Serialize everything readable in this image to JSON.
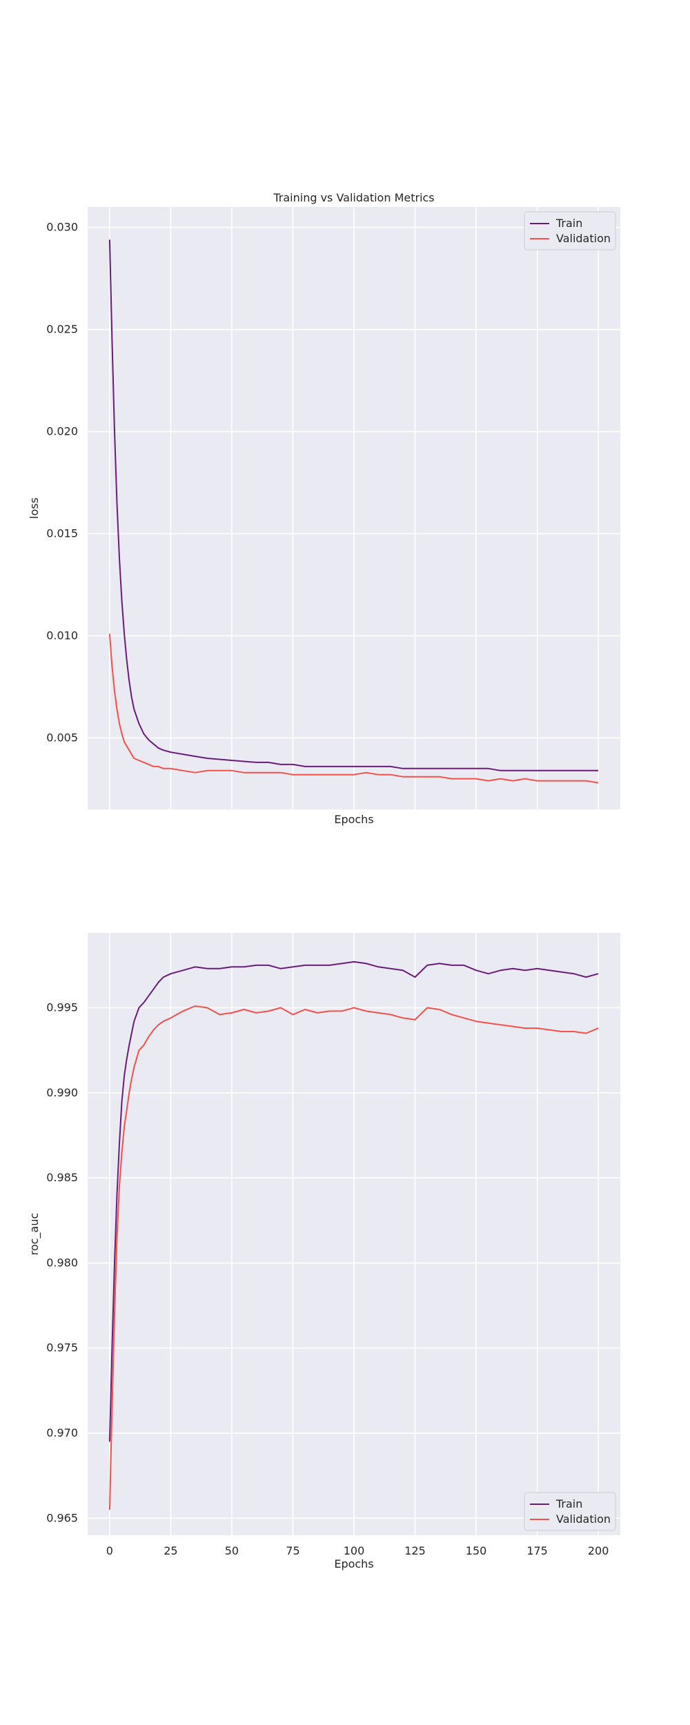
{
  "figure": {
    "title": "Training vs Validation Metrics",
    "background": "#ffffff",
    "axes_background": "#eaeaf2",
    "grid_color": "#ffffff"
  },
  "series_colors": {
    "Train": "#6a1b7a",
    "Validation": "#f4504a"
  },
  "chart_data": [
    {
      "type": "line",
      "title": "Training vs Validation Metrics",
      "xlabel": "Epochs",
      "ylabel": "loss",
      "xlim": [
        -9,
        209
      ],
      "ylim": [
        0.0015,
        0.031
      ],
      "xticks": [
        0,
        25,
        50,
        75,
        100,
        125,
        150,
        175,
        200
      ],
      "xtick_labels_visible": false,
      "yticks": [
        0.005,
        0.01,
        0.015,
        0.02,
        0.025,
        0.03
      ],
      "ytick_labels": [
        "0.005",
        "0.010",
        "0.015",
        "0.020",
        "0.025",
        "0.030"
      ],
      "grid": true,
      "legend": "upper right",
      "x": [
        0,
        1,
        2,
        3,
        4,
        5,
        6,
        7,
        8,
        9,
        10,
        12,
        14,
        16,
        18,
        20,
        22,
        25,
        30,
        35,
        40,
        45,
        50,
        55,
        60,
        65,
        70,
        75,
        80,
        85,
        90,
        95,
        100,
        105,
        110,
        115,
        120,
        125,
        130,
        135,
        140,
        145,
        150,
        155,
        160,
        165,
        170,
        175,
        180,
        185,
        190,
        195,
        200
      ],
      "series": [
        {
          "name": "Train",
          "values": [
            0.0294,
            0.0245,
            0.02,
            0.0165,
            0.0138,
            0.0117,
            0.0101,
            0.0088,
            0.0078,
            0.007,
            0.0064,
            0.0057,
            0.0052,
            0.0049,
            0.0047,
            0.0045,
            0.0044,
            0.0043,
            0.0042,
            0.0041,
            0.004,
            0.00395,
            0.0039,
            0.00385,
            0.0038,
            0.0038,
            0.0037,
            0.0037,
            0.0036,
            0.0036,
            0.0036,
            0.0036,
            0.0036,
            0.0036,
            0.0036,
            0.0036,
            0.0035,
            0.0035,
            0.0035,
            0.0035,
            0.0035,
            0.0035,
            0.0035,
            0.0035,
            0.0034,
            0.0034,
            0.0034,
            0.0034,
            0.0034,
            0.0034,
            0.0034,
            0.0034,
            0.0034
          ]
        },
        {
          "name": "Validation",
          "values": [
            0.0101,
            0.0085,
            0.0073,
            0.0064,
            0.0057,
            0.0052,
            0.0048,
            0.0046,
            0.0044,
            0.0042,
            0.004,
            0.0039,
            0.0038,
            0.0037,
            0.0036,
            0.0036,
            0.0035,
            0.0035,
            0.0034,
            0.0033,
            0.0034,
            0.0034,
            0.0034,
            0.0033,
            0.0033,
            0.0033,
            0.0033,
            0.0032,
            0.0032,
            0.0032,
            0.0032,
            0.0032,
            0.0032,
            0.0033,
            0.0032,
            0.0032,
            0.0031,
            0.0031,
            0.0031,
            0.0031,
            0.003,
            0.003,
            0.003,
            0.0029,
            0.003,
            0.0029,
            0.003,
            0.0029,
            0.0029,
            0.0029,
            0.0029,
            0.0029,
            0.0028
          ]
        }
      ]
    },
    {
      "type": "line",
      "xlabel": "Epochs",
      "ylabel": "roc_auc",
      "xlim": [
        -9,
        209
      ],
      "ylim": [
        0.964,
        0.9994
      ],
      "xticks": [
        0,
        25,
        50,
        75,
        100,
        125,
        150,
        175,
        200
      ],
      "xtick_labels": [
        "0",
        "25",
        "50",
        "75",
        "100",
        "125",
        "150",
        "175",
        "200"
      ],
      "yticks": [
        0.965,
        0.97,
        0.975,
        0.98,
        0.985,
        0.99,
        0.995
      ],
      "ytick_labels": [
        "0.965",
        "0.970",
        "0.975",
        "0.980",
        "0.985",
        "0.990",
        "0.995"
      ],
      "grid": true,
      "legend": "lower right",
      "x": [
        0,
        1,
        2,
        3,
        4,
        5,
        6,
        7,
        8,
        9,
        10,
        12,
        14,
        16,
        18,
        20,
        22,
        25,
        30,
        35,
        40,
        45,
        50,
        55,
        60,
        65,
        70,
        75,
        80,
        85,
        90,
        95,
        100,
        105,
        110,
        115,
        120,
        125,
        130,
        135,
        140,
        145,
        150,
        155,
        160,
        165,
        170,
        175,
        180,
        185,
        190,
        195,
        200
      ],
      "series": [
        {
          "name": "Train",
          "values": [
            0.9695,
            0.975,
            0.98,
            0.984,
            0.987,
            0.9895,
            0.991,
            0.992,
            0.9928,
            0.9935,
            0.9942,
            0.995,
            0.9953,
            0.9957,
            0.9961,
            0.9965,
            0.9968,
            0.997,
            0.9972,
            0.9974,
            0.9973,
            0.9973,
            0.9974,
            0.9974,
            0.9975,
            0.9975,
            0.9973,
            0.9974,
            0.9975,
            0.9975,
            0.9975,
            0.9976,
            0.9977,
            0.9976,
            0.9974,
            0.9973,
            0.9972,
            0.9968,
            0.9975,
            0.9976,
            0.9975,
            0.9975,
            0.9972,
            0.997,
            0.9972,
            0.9973,
            0.9972,
            0.9973,
            0.9972,
            0.9971,
            0.997,
            0.9968,
            0.997
          ]
        },
        {
          "name": "Validation",
          "values": [
            0.9655,
            0.9715,
            0.977,
            0.9815,
            0.9845,
            0.9865,
            0.988,
            0.989,
            0.99,
            0.9908,
            0.9915,
            0.9925,
            0.9928,
            0.9933,
            0.9937,
            0.994,
            0.9942,
            0.9944,
            0.9948,
            0.9951,
            0.995,
            0.9946,
            0.9947,
            0.9949,
            0.9947,
            0.9948,
            0.995,
            0.9946,
            0.9949,
            0.9947,
            0.9948,
            0.9948,
            0.995,
            0.9948,
            0.9947,
            0.9946,
            0.9944,
            0.9943,
            0.995,
            0.9949,
            0.9946,
            0.9944,
            0.9942,
            0.9941,
            0.994,
            0.9939,
            0.9938,
            0.9938,
            0.9937,
            0.9936,
            0.9936,
            0.9935,
            0.9938
          ]
        }
      ]
    }
  ]
}
